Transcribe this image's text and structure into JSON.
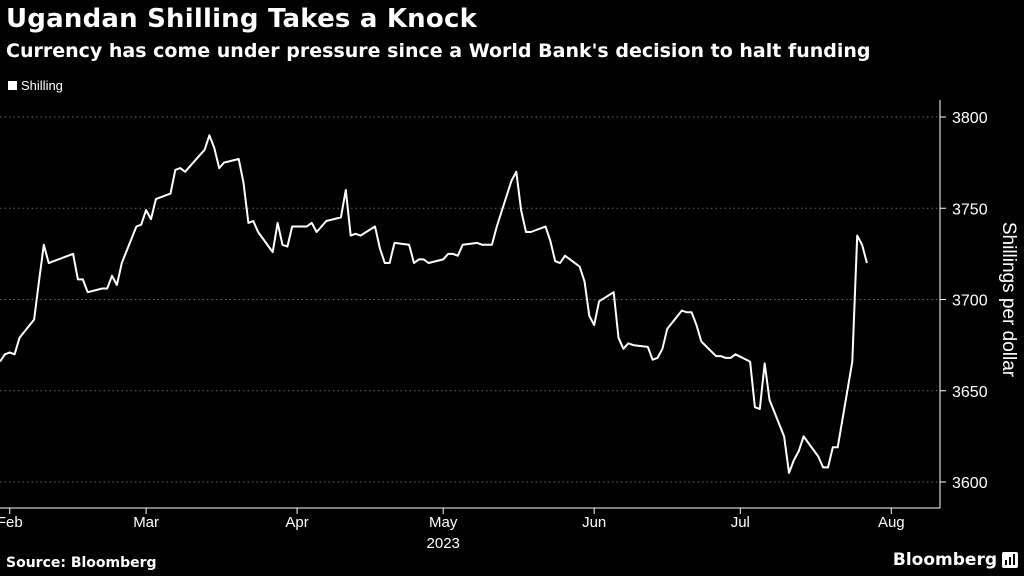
{
  "title": "Ugandan Shilling Takes a Knock",
  "subtitle": "Currency has come under pressure since a World Bank's decision to halt funding",
  "source": "Source: Bloomberg",
  "brand": "Bloomberg",
  "colors": {
    "background": "#000000",
    "line": "#ffffff",
    "grid": "#666666",
    "text": "#ffffff"
  },
  "chart_data": {
    "type": "line",
    "title": "Ugandan Shilling Takes a Knock",
    "subtitle": "Currency has come under pressure since a World Bank's decision to halt funding",
    "xlabel": "2023",
    "ylabel": "Shillings per dollar",
    "ylim": [
      3590,
      3810
    ],
    "y_ticks": [
      3600,
      3650,
      3700,
      3750,
      3800
    ],
    "y_axis_position": "right",
    "grid": "horizontal dotted",
    "legend": {
      "position": "top-left"
    },
    "x_range": [
      "2023-01-30",
      "2023-08-11"
    ],
    "x_ticks": [
      {
        "label": "Feb",
        "date": "2023-02-01"
      },
      {
        "label": "Mar",
        "date": "2023-03-01"
      },
      {
        "label": "Apr",
        "date": "2023-04-01"
      },
      {
        "label": "May",
        "date": "2023-05-01"
      },
      {
        "label": "Jun",
        "date": "2023-06-01"
      },
      {
        "label": "Jul",
        "date": "2023-07-01"
      },
      {
        "label": "Aug",
        "date": "2023-08-01"
      }
    ],
    "series": [
      {
        "name": "Shilling",
        "points": [
          [
            "2023-01-30",
            3666
          ],
          [
            "2023-01-31",
            3670
          ],
          [
            "2023-02-01",
            3671
          ],
          [
            "2023-02-02",
            3670
          ],
          [
            "2023-02-03",
            3679
          ],
          [
            "2023-02-06",
            3689
          ],
          [
            "2023-02-07",
            3710
          ],
          [
            "2023-02-08",
            3730
          ],
          [
            "2023-02-09",
            3720
          ],
          [
            "2023-02-10",
            3721
          ],
          [
            "2023-02-13",
            3724
          ],
          [
            "2023-02-14",
            3725
          ],
          [
            "2023-02-15",
            3711
          ],
          [
            "2023-02-16",
            3711
          ],
          [
            "2023-02-17",
            3704
          ],
          [
            "2023-02-20",
            3706
          ],
          [
            "2023-02-21",
            3706
          ],
          [
            "2023-02-22",
            3713
          ],
          [
            "2023-02-23",
            3708
          ],
          [
            "2023-02-24",
            3720
          ],
          [
            "2023-02-27",
            3740
          ],
          [
            "2023-02-28",
            3741
          ],
          [
            "2023-03-01",
            3749
          ],
          [
            "2023-03-02",
            3744
          ],
          [
            "2023-03-03",
            3755
          ],
          [
            "2023-03-06",
            3758
          ],
          [
            "2023-03-07",
            3771
          ],
          [
            "2023-03-08",
            3772
          ],
          [
            "2023-03-09",
            3770
          ],
          [
            "2023-03-10",
            3773
          ],
          [
            "2023-03-13",
            3782
          ],
          [
            "2023-03-14",
            3790
          ],
          [
            "2023-03-15",
            3783
          ],
          [
            "2023-03-16",
            3772
          ],
          [
            "2023-03-17",
            3775
          ],
          [
            "2023-03-20",
            3777
          ],
          [
            "2023-03-21",
            3764
          ],
          [
            "2023-03-22",
            3742
          ],
          [
            "2023-03-23",
            3743
          ],
          [
            "2023-03-24",
            3737
          ],
          [
            "2023-03-27",
            3726
          ],
          [
            "2023-03-28",
            3742
          ],
          [
            "2023-03-29",
            3730
          ],
          [
            "2023-03-30",
            3729
          ],
          [
            "2023-03-31",
            3740
          ],
          [
            "2023-04-03",
            3740
          ],
          [
            "2023-04-04",
            3742
          ],
          [
            "2023-04-05",
            3737
          ],
          [
            "2023-04-06",
            3740
          ],
          [
            "2023-04-07",
            3743
          ],
          [
            "2023-04-10",
            3745
          ],
          [
            "2023-04-11",
            3760
          ],
          [
            "2023-04-12",
            3735
          ],
          [
            "2023-04-13",
            3736
          ],
          [
            "2023-04-14",
            3735
          ],
          [
            "2023-04-17",
            3740
          ],
          [
            "2023-04-18",
            3728
          ],
          [
            "2023-04-19",
            3720
          ],
          [
            "2023-04-20",
            3720
          ],
          [
            "2023-04-21",
            3731
          ],
          [
            "2023-04-24",
            3730
          ],
          [
            "2023-04-25",
            3720
          ],
          [
            "2023-04-26",
            3722
          ],
          [
            "2023-04-27",
            3722
          ],
          [
            "2023-04-28",
            3720
          ],
          [
            "2023-05-01",
            3722
          ],
          [
            "2023-05-02",
            3725
          ],
          [
            "2023-05-03",
            3725
          ],
          [
            "2023-05-04",
            3724
          ],
          [
            "2023-05-05",
            3730
          ],
          [
            "2023-05-08",
            3731
          ],
          [
            "2023-05-09",
            3730
          ],
          [
            "2023-05-10",
            3730
          ],
          [
            "2023-05-11",
            3730
          ],
          [
            "2023-05-12",
            3740
          ],
          [
            "2023-05-15",
            3765
          ],
          [
            "2023-05-16",
            3770
          ],
          [
            "2023-05-17",
            3749
          ],
          [
            "2023-05-18",
            3737
          ],
          [
            "2023-05-19",
            3737
          ],
          [
            "2023-05-22",
            3740
          ],
          [
            "2023-05-23",
            3732
          ],
          [
            "2023-05-24",
            3721
          ],
          [
            "2023-05-25",
            3720
          ],
          [
            "2023-05-26",
            3724
          ],
          [
            "2023-05-29",
            3718
          ],
          [
            "2023-05-30",
            3710
          ],
          [
            "2023-05-31",
            3691
          ],
          [
            "2023-06-01",
            3686
          ],
          [
            "2023-06-02",
            3699
          ],
          [
            "2023-06-05",
            3704
          ],
          [
            "2023-06-06",
            3679
          ],
          [
            "2023-06-07",
            3673
          ],
          [
            "2023-06-08",
            3676
          ],
          [
            "2023-06-09",
            3675
          ],
          [
            "2023-06-12",
            3674
          ],
          [
            "2023-06-13",
            3667
          ],
          [
            "2023-06-14",
            3668
          ],
          [
            "2023-06-15",
            3673
          ],
          [
            "2023-06-16",
            3684
          ],
          [
            "2023-06-19",
            3694
          ],
          [
            "2023-06-20",
            3693
          ],
          [
            "2023-06-21",
            3693
          ],
          [
            "2023-06-22",
            3686
          ],
          [
            "2023-06-23",
            3677
          ],
          [
            "2023-06-26",
            3669
          ],
          [
            "2023-06-27",
            3669
          ],
          [
            "2023-06-28",
            3668
          ],
          [
            "2023-06-29",
            3668
          ],
          [
            "2023-06-30",
            3670
          ],
          [
            "2023-07-03",
            3666
          ],
          [
            "2023-07-04",
            3641
          ],
          [
            "2023-07-05",
            3640
          ],
          [
            "2023-07-06",
            3665
          ],
          [
            "2023-07-07",
            3645
          ],
          [
            "2023-07-10",
            3625
          ],
          [
            "2023-07-11",
            3605
          ],
          [
            "2023-07-12",
            3612
          ],
          [
            "2023-07-13",
            3617
          ],
          [
            "2023-07-14",
            3625
          ],
          [
            "2023-07-17",
            3614
          ],
          [
            "2023-07-18",
            3608
          ],
          [
            "2023-07-19",
            3608
          ],
          [
            "2023-07-20",
            3619
          ],
          [
            "2023-07-21",
            3619
          ],
          [
            "2023-07-24",
            3666
          ],
          [
            "2023-07-25",
            3735
          ],
          [
            "2023-07-26",
            3730
          ],
          [
            "2023-07-27",
            3720
          ]
        ]
      }
    ]
  }
}
